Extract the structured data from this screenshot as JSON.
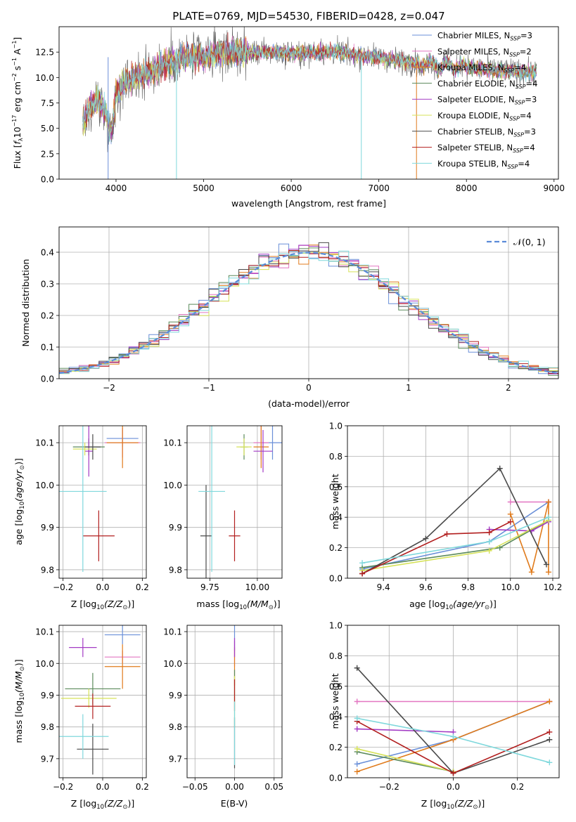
{
  "colors": {
    "series": [
      "#6a8fd8",
      "#e377c2",
      "#e07b1c",
      "#5b8a5b",
      "#a23ac4",
      "#d6e25a",
      "#4a4a4a",
      "#b21f1f",
      "#7fd8dc"
    ]
  },
  "chart_data": [
    {
      "id": "spectrum",
      "type": "line",
      "title": "PLATE=0769, MJD=54530, FIBERID=0428, z=0.047",
      "xlabel": "wavelength [Angstrom, rest frame]",
      "ylabel": "Flux [f_λ 10^-17 erg cm^-2 s^-1 A^-1]",
      "xlim": [
        3350,
        9050
      ],
      "ylim": [
        0,
        15
      ],
      "xticks": [
        "4000",
        "5000",
        "6000",
        "7000",
        "8000",
        "9000"
      ],
      "yticks": [
        "0.0",
        "2.5",
        "5.0",
        "7.5",
        "10.0",
        "12.5"
      ],
      "legend": "upper-right",
      "legend_entries": [
        "Chabrier MILES, N_SSP=3",
        "Salpeter MILES, N_SSP=2",
        "Kroupa MILES, N_SSP=4",
        "Chabrier ELODIE, N_SSP=4",
        "Salpeter ELODIE, N_SSP=3",
        "Kroupa ELODIE, N_SSP=4",
        "Chabrier STELIB, N_SSP=3",
        "Salpeter STELIB, N_SSP=4",
        "Kroupa STELIB, N_SSP=4"
      ],
      "continuum": [
        [
          3620,
          5.5
        ],
        [
          3700,
          7
        ],
        [
          3800,
          8
        ],
        [
          3900,
          6
        ],
        [
          3950,
          4.5
        ],
        [
          4000,
          8.5
        ],
        [
          4100,
          9.5
        ],
        [
          4200,
          10
        ],
        [
          4400,
          10.5
        ],
        [
          4600,
          11.5
        ],
        [
          4800,
          12
        ],
        [
          5000,
          12
        ],
        [
          5200,
          12.5
        ],
        [
          5500,
          12.5
        ],
        [
          5800,
          12.5
        ],
        [
          6000,
          12.3
        ],
        [
          6300,
          12.5
        ],
        [
          6500,
          12.5
        ],
        [
          6700,
          12.3
        ],
        [
          7000,
          12
        ],
        [
          7200,
          11.7
        ],
        [
          7500,
          11.3
        ],
        [
          7800,
          11.2
        ],
        [
          8000,
          11.0
        ],
        [
          8200,
          10.8
        ],
        [
          8500,
          10.6
        ],
        [
          8800,
          10.5
        ]
      ]
    },
    {
      "id": "residuals",
      "type": "histogram",
      "xlabel": "(data-model)/error",
      "ylabel": "Normed distribution",
      "xlim": [
        -2.5,
        2.5
      ],
      "ylim": [
        0,
        0.48
      ],
      "xticks": [
        "−2",
        "−1",
        "0",
        "1",
        "2"
      ],
      "yticks": [
        "0.0",
        "0.1",
        "0.2",
        "0.3",
        "0.4"
      ],
      "grid": true,
      "bin_width": 0.1,
      "reference_curve": "N(0,1)",
      "legend_label": "𝒩(0, 1)",
      "legend": "upper-right"
    },
    {
      "id": "age_vs_Z",
      "type": "errorbar",
      "xlabel": "Z [log10(Z/Z⊙)]",
      "ylabel": "age [log10(age/yr)]",
      "xlim": [
        -0.22,
        0.22
      ],
      "ylim": [
        9.78,
        10.14
      ],
      "xticks": [
        "−0.2",
        "0.0",
        "0.2"
      ],
      "yticks": [
        "9.8",
        "9.9",
        "10.0",
        "10.1"
      ],
      "grid": true,
      "points": [
        {
          "x": 0.1,
          "y": 10.11,
          "xerr": 0.08,
          "yerr": 0.02
        },
        {
          "x": 0.1,
          "y": 10.1,
          "xerr": 0.09,
          "yerr": 0.035
        },
        {
          "x": 0.1,
          "y": 10.1,
          "xerr": 0.08,
          "yerr": 0.06
        },
        {
          "x": -0.07,
          "y": 10.09,
          "xerr": 0.08,
          "yerr": 0.02
        },
        {
          "x": -0.07,
          "y": 10.08,
          "xerr": 0.02,
          "yerr": 0.06
        },
        {
          "x": -0.09,
          "y": 10.085,
          "xerr": 0.06,
          "yerr": 0.015
        },
        {
          "x": -0.05,
          "y": 10.09,
          "xerr": 0.04,
          "yerr": 0.03
        },
        {
          "x": -0.02,
          "y": 9.88,
          "xerr": 0.08,
          "yerr": 0.06
        },
        {
          "x": -0.1,
          "y": 9.985,
          "xerr": 0.12,
          "yerr": 0.19
        }
      ]
    },
    {
      "id": "age_vs_mass",
      "type": "errorbar",
      "xlabel": "mass [log10(M/M⊙)]",
      "ylabel": "",
      "xlim": [
        9.63,
        10.13
      ],
      "ylim": [
        9.78,
        10.14
      ],
      "xticks": [
        "9.75",
        "10.00"
      ],
      "yticks": [
        "9.8",
        "9.9",
        "10.0",
        "10.1"
      ],
      "grid": true,
      "points": [
        {
          "x": 10.08,
          "y": 10.1,
          "xerr": 0.05,
          "yerr": 0.04
        },
        {
          "x": 10.02,
          "y": 10.1,
          "xerr": 0.04,
          "yerr": 0.04
        },
        {
          "x": 10.02,
          "y": 10.09,
          "xerr": 0.04,
          "yerr": 0.05
        },
        {
          "x": 9.93,
          "y": 10.09,
          "xerr": 0.02,
          "yerr": 0.03
        },
        {
          "x": 10.03,
          "y": 10.08,
          "xerr": 0.05,
          "yerr": 0.05
        },
        {
          "x": 9.93,
          "y": 10.09,
          "xerr": 0.04,
          "yerr": 0.02
        },
        {
          "x": 9.73,
          "y": 9.88,
          "xerr": 0.03,
          "yerr": 0.12
        },
        {
          "x": 9.88,
          "y": 9.88,
          "xerr": 0.03,
          "yerr": 0.06
        },
        {
          "x": 9.76,
          "y": 9.985,
          "xerr": 0.07,
          "yerr": 0.19
        }
      ]
    },
    {
      "id": "mass_weight_vs_age",
      "type": "line",
      "xlabel": "age [log10(age/yr)]",
      "ylabel": "mass weight",
      "xlim": [
        9.23,
        10.23
      ],
      "ylim": [
        0,
        1.0
      ],
      "xticks": [
        "9.4",
        "9.6",
        "9.8",
        "10.0",
        "10.2"
      ],
      "yticks": [
        "0.0",
        "0.2",
        "0.4",
        "0.6",
        "0.8",
        "1.0"
      ],
      "grid": true,
      "series": [
        {
          "x": [
            9.3,
            9.9,
            10.18
          ],
          "y": [
            0.06,
            0.24,
            0.5
          ]
        },
        {
          "x": [
            10.0,
            10.18
          ],
          "y": [
            0.5,
            0.5
          ]
        },
        {
          "x": [
            10.0,
            10.1,
            10.18,
            10.18
          ],
          "y": [
            0.42,
            0.04,
            0.5,
            0.04
          ]
        },
        {
          "x": [
            9.3,
            9.95,
            10.18
          ],
          "y": [
            0.07,
            0.2,
            0.38
          ]
        },
        {
          "x": [
            9.9,
            10.1,
            10.18
          ],
          "y": [
            0.32,
            0.31,
            0.37
          ]
        },
        {
          "x": [
            9.3,
            9.9,
            10.18
          ],
          "y": [
            0.05,
            0.18,
            0.38
          ]
        },
        {
          "x": [
            9.3,
            9.6,
            9.95,
            10.17
          ],
          "y": [
            0.03,
            0.26,
            0.72,
            0.09
          ]
        },
        {
          "x": [
            9.3,
            9.7,
            9.9,
            10.0
          ],
          "y": [
            0.03,
            0.29,
            0.3,
            0.37
          ]
        },
        {
          "x": [
            9.3,
            9.9,
            10.18
          ],
          "y": [
            0.1,
            0.24,
            0.4
          ]
        }
      ]
    },
    {
      "id": "mass_vs_Z",
      "type": "errorbar",
      "xlabel": "Z [log10(Z/Z⊙)]",
      "ylabel": "mass [log10(M/M⊙)]",
      "xlim": [
        -0.22,
        0.22
      ],
      "ylim": [
        9.64,
        10.12
      ],
      "xticks": [
        "−0.2",
        "0.0",
        "0.2"
      ],
      "yticks": [
        "9.7",
        "9.8",
        "9.9",
        "10.0",
        "10.1"
      ],
      "grid": true,
      "points": [
        {
          "x": 0.1,
          "y": 10.09,
          "xerr": 0.09,
          "yerr": 0.03
        },
        {
          "x": 0.1,
          "y": 10.02,
          "xerr": 0.09,
          "yerr": 0.02
        },
        {
          "x": 0.1,
          "y": 9.99,
          "xerr": 0.09,
          "yerr": 0.07
        },
        {
          "x": -0.05,
          "y": 9.92,
          "xerr": 0.14,
          "yerr": 0.05
        },
        {
          "x": -0.1,
          "y": 10.05,
          "xerr": 0.07,
          "yerr": 0.03
        },
        {
          "x": -0.07,
          "y": 9.89,
          "xerr": 0.14,
          "yerr": 0.03
        },
        {
          "x": -0.05,
          "y": 9.73,
          "xerr": 0.08,
          "yerr": 0.08
        },
        {
          "x": -0.05,
          "y": 9.865,
          "xerr": 0.09,
          "yerr": 0.04
        },
        {
          "x": -0.1,
          "y": 9.77,
          "xerr": 0.13,
          "yerr": 0.07
        }
      ]
    },
    {
      "id": "mass_vs_EBV",
      "type": "errorbar",
      "xlabel": "E(B-V)",
      "ylabel": "",
      "xlim": [
        -0.06,
        0.06
      ],
      "ylim": [
        9.64,
        10.12
      ],
      "xticks": [
        "−0.05",
        "0.00",
        "0.05"
      ],
      "yticks": [
        "9.7",
        "9.8",
        "9.9",
        "10.0",
        "10.1"
      ],
      "grid": true,
      "points": [
        {
          "x": 0.0,
          "y": 10.08,
          "xerr": 0,
          "yerr": 0.04
        },
        {
          "x": 0.0,
          "y": 10.03,
          "xerr": 0,
          "yerr": 0.04
        },
        {
          "x": 0.0,
          "y": 9.99,
          "xerr": 0,
          "yerr": 0.06
        },
        {
          "x": 0.0,
          "y": 9.93,
          "xerr": 0,
          "yerr": 0.05
        },
        {
          "x": 0.0,
          "y": 10.05,
          "xerr": 0,
          "yerr": 0.03
        },
        {
          "x": 0.0,
          "y": 9.88,
          "xerr": 0,
          "yerr": 0.08
        },
        {
          "x": 0.0,
          "y": 9.75,
          "xerr": 0,
          "yerr": 0.08
        },
        {
          "x": 0.0,
          "y": 9.9,
          "xerr": 0,
          "yerr": 0.05
        },
        {
          "x": 0.0,
          "y": 9.78,
          "xerr": 0,
          "yerr": 0.1
        }
      ]
    },
    {
      "id": "mass_weight_vs_Z",
      "type": "line",
      "xlabel": "Z [log10(Z/Z⊙)]",
      "ylabel": "mass weight",
      "xlim": [
        -0.33,
        0.33
      ],
      "ylim": [
        0,
        1.0
      ],
      "xticks": [
        "−0.2",
        "0.0",
        "0.2"
      ],
      "yticks": [
        "0.0",
        "0.2",
        "0.4",
        "0.6",
        "0.8",
        "1.0"
      ],
      "grid": true,
      "series": [
        {
          "x": [
            -0.3,
            0.0,
            0.3
          ],
          "y": [
            0.09,
            0.25,
            0.5
          ]
        },
        {
          "x": [
            -0.3,
            0.3
          ],
          "y": [
            0.5,
            0.5
          ]
        },
        {
          "x": [
            -0.3,
            0.0,
            0.3
          ],
          "y": [
            0.04,
            0.25,
            0.5
          ]
        },
        {
          "x": [
            -0.3,
            0.0
          ],
          "y": [
            0.17,
            0.04
          ]
        },
        {
          "x": [
            -0.3,
            0.0
          ],
          "y": [
            0.32,
            0.3
          ]
        },
        {
          "x": [
            -0.3,
            0.0
          ],
          "y": [
            0.19,
            0.04
          ]
        },
        {
          "x": [
            -0.3,
            0.0,
            0.3
          ],
          "y": [
            0.72,
            0.03,
            0.25
          ]
        },
        {
          "x": [
            -0.3,
            0.0,
            0.3
          ],
          "y": [
            0.37,
            0.03,
            0.3
          ]
        },
        {
          "x": [
            -0.3,
            0.0,
            0.3
          ],
          "y": [
            0.39,
            0.27,
            0.1
          ]
        }
      ]
    }
  ]
}
